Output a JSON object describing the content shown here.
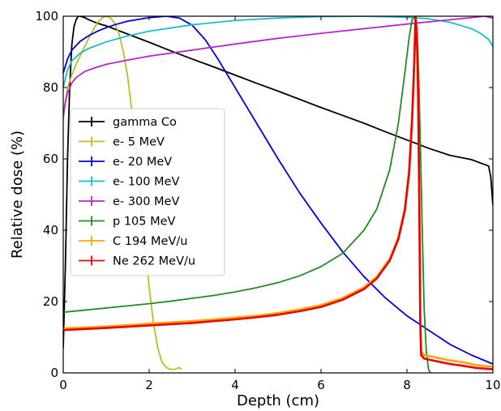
{
  "chart_data": {
    "type": "line",
    "xlabel": "Depth (cm)",
    "ylabel": "Relative dose (%)",
    "xlim": [
      0,
      10
    ],
    "ylim": [
      0,
      100
    ],
    "xticks": [
      0,
      2,
      4,
      6,
      8,
      10
    ],
    "yticks": [
      0,
      20,
      40,
      60,
      80,
      100
    ],
    "grid": false,
    "legend_position": "center-left",
    "series": [
      {
        "name": "gamma Co",
        "color": "#000000",
        "x": [
          0,
          0.05,
          0.1,
          0.15,
          0.2,
          0.25,
          0.3,
          0.35,
          0.4,
          0.5,
          0.6,
          0.8,
          1.0,
          1.5,
          2.0,
          2.5,
          3.0,
          3.5,
          4.0,
          4.5,
          5.0,
          5.5,
          6.0,
          6.5,
          7.0,
          7.5,
          8.0,
          8.5,
          9.0,
          9.5,
          9.9,
          9.95,
          10.0
        ],
        "y": [
          7,
          30,
          60,
          80,
          92,
          97,
          99,
          100,
          100,
          99.6,
          99,
          98,
          97.3,
          95,
          92.7,
          90.3,
          88,
          85.8,
          83.5,
          81.2,
          79,
          76.7,
          74.4,
          72.2,
          70,
          67.6,
          65.3,
          63,
          61,
          59.8,
          58,
          55,
          47
        ]
      },
      {
        "name": "e- 5 MeV",
        "color": "#bcbd22",
        "x": [
          0,
          0.05,
          0.1,
          0.2,
          0.3,
          0.4,
          0.5,
          0.6,
          0.7,
          0.8,
          0.9,
          1.0,
          1.1,
          1.2,
          1.3,
          1.4,
          1.5,
          1.6,
          1.7,
          1.8,
          1.9,
          2.0,
          2.1,
          2.2,
          2.3,
          2.4,
          2.5,
          2.6,
          2.7,
          2.75
        ],
        "y": [
          71,
          76,
          80,
          83.5,
          86.5,
          89,
          91.5,
          94,
          96.3,
          98.2,
          99.5,
          100,
          99.5,
          98,
          95,
          90,
          83,
          73,
          62,
          49,
          36,
          24,
          14,
          7,
          3,
          1.5,
          1,
          1,
          1.5,
          1
        ]
      },
      {
        "name": "e- 20 MeV",
        "color": "#0000dd",
        "x": [
          0,
          0.1,
          0.2,
          0.4,
          0.6,
          0.8,
          1.0,
          1.2,
          1.5,
          2.0,
          2.4,
          2.7,
          3.0,
          3.3,
          3.6,
          4.0,
          4.5,
          5.0,
          5.5,
          6.0,
          6.5,
          7.0,
          7.5,
          8.0,
          8.5,
          9.0,
          9.5,
          10.0
        ],
        "y": [
          84,
          88,
          90.5,
          93,
          94.6,
          95.8,
          96.8,
          97.6,
          98.6,
          99.6,
          100,
          99.5,
          97.5,
          93.5,
          88,
          80,
          70,
          60,
          50.5,
          42,
          34,
          27,
          21,
          16,
          12,
          8,
          5,
          2.5
        ]
      },
      {
        "name": "e- 100 MeV",
        "color": "#17becf",
        "x": [
          0,
          0.1,
          0.2,
          0.4,
          0.6,
          1.0,
          1.5,
          2.0,
          3.0,
          4.0,
          5.0,
          6.0,
          7.0,
          8.0,
          8.5,
          9.0,
          9.5,
          9.7,
          9.9,
          10.0
        ],
        "y": [
          80,
          85,
          87.5,
          89.7,
          91,
          92.8,
          94.5,
          95.8,
          97.6,
          98.8,
          99.5,
          99.9,
          100,
          99.7,
          99.3,
          98.3,
          96.5,
          95.3,
          93.5,
          91.5
        ]
      },
      {
        "name": "e- 300 MeV",
        "color": "#bb22cc",
        "x": [
          0,
          0.05,
          0.1,
          0.2,
          0.3,
          0.5,
          0.8,
          1.0,
          1.5,
          2.0,
          3.0,
          4.0,
          5.0,
          6.0,
          7.0,
          8.0,
          9.0,
          9.5,
          9.8,
          10.0
        ],
        "y": [
          72,
          76,
          78.5,
          81.3,
          82.8,
          84.5,
          85.8,
          86.5,
          87.7,
          88.8,
          90.5,
          92.2,
          93.8,
          95.2,
          96.5,
          97.8,
          99,
          99.6,
          100,
          99.5
        ]
      },
      {
        "name": "p 105 MeV",
        "color": "#228b22",
        "x": [
          0,
          0.5,
          1,
          1.5,
          2,
          2.5,
          3,
          3.5,
          4,
          4.5,
          5,
          5.5,
          6,
          6.5,
          7,
          7.3,
          7.6,
          7.8,
          7.95,
          8.05,
          8.12,
          8.18,
          8.22,
          8.25,
          8.28,
          8.32,
          8.36,
          8.4,
          8.45,
          8.5,
          8.55
        ],
        "y": [
          17,
          17.6,
          18.2,
          18.8,
          19.4,
          20.1,
          20.9,
          21.7,
          22.7,
          23.9,
          25.3,
          27.2,
          29.8,
          33.5,
          40,
          46,
          57,
          70,
          84,
          94,
          99,
          100,
          97,
          92,
          80,
          60,
          38,
          18,
          6,
          1,
          0
        ]
      },
      {
        "name": "C 194 MeV/u",
        "color": "#ffa500",
        "x": [
          0,
          1,
          2,
          3,
          4,
          4.5,
          5,
          5.5,
          6,
          6.5,
          7,
          7.3,
          7.6,
          7.8,
          7.95,
          8.05,
          8.12,
          8.17,
          8.2,
          8.23,
          8.26,
          8.29,
          8.31,
          8.33,
          8.4,
          8.6,
          8.8,
          9.0,
          9.3,
          9.6,
          10.0
        ],
        "y": [
          12.5,
          13,
          13.8,
          14.5,
          15.5,
          16,
          16.8,
          17.8,
          19,
          21,
          24,
          27,
          32,
          38,
          46,
          57,
          72,
          88,
          100,
          95,
          78,
          45,
          15,
          6,
          5,
          4.5,
          4,
          3.5,
          3,
          2.2,
          1.7
        ]
      },
      {
        "name": "Ne 262 MeV/u",
        "color": "#ee0000",
        "x": [
          0,
          1,
          2,
          3,
          4,
          4.5,
          5,
          5.5,
          6,
          6.5,
          7,
          7.3,
          7.6,
          7.8,
          7.95,
          8.05,
          8.12,
          8.17,
          8.2,
          8.23,
          8.26,
          8.29,
          8.31,
          8.33,
          8.4,
          8.6,
          8.8,
          9.0,
          9.3,
          9.6,
          10.0
        ],
        "y": [
          12,
          12.6,
          13.3,
          14,
          15,
          15.6,
          16.3,
          17.3,
          18.5,
          20.5,
          23.5,
          26.5,
          31.5,
          37.5,
          45.5,
          56,
          71,
          87,
          100,
          95,
          78,
          44,
          14,
          5,
          4,
          3.5,
          3,
          2.5,
          2,
          1.4,
          1
        ]
      }
    ]
  }
}
